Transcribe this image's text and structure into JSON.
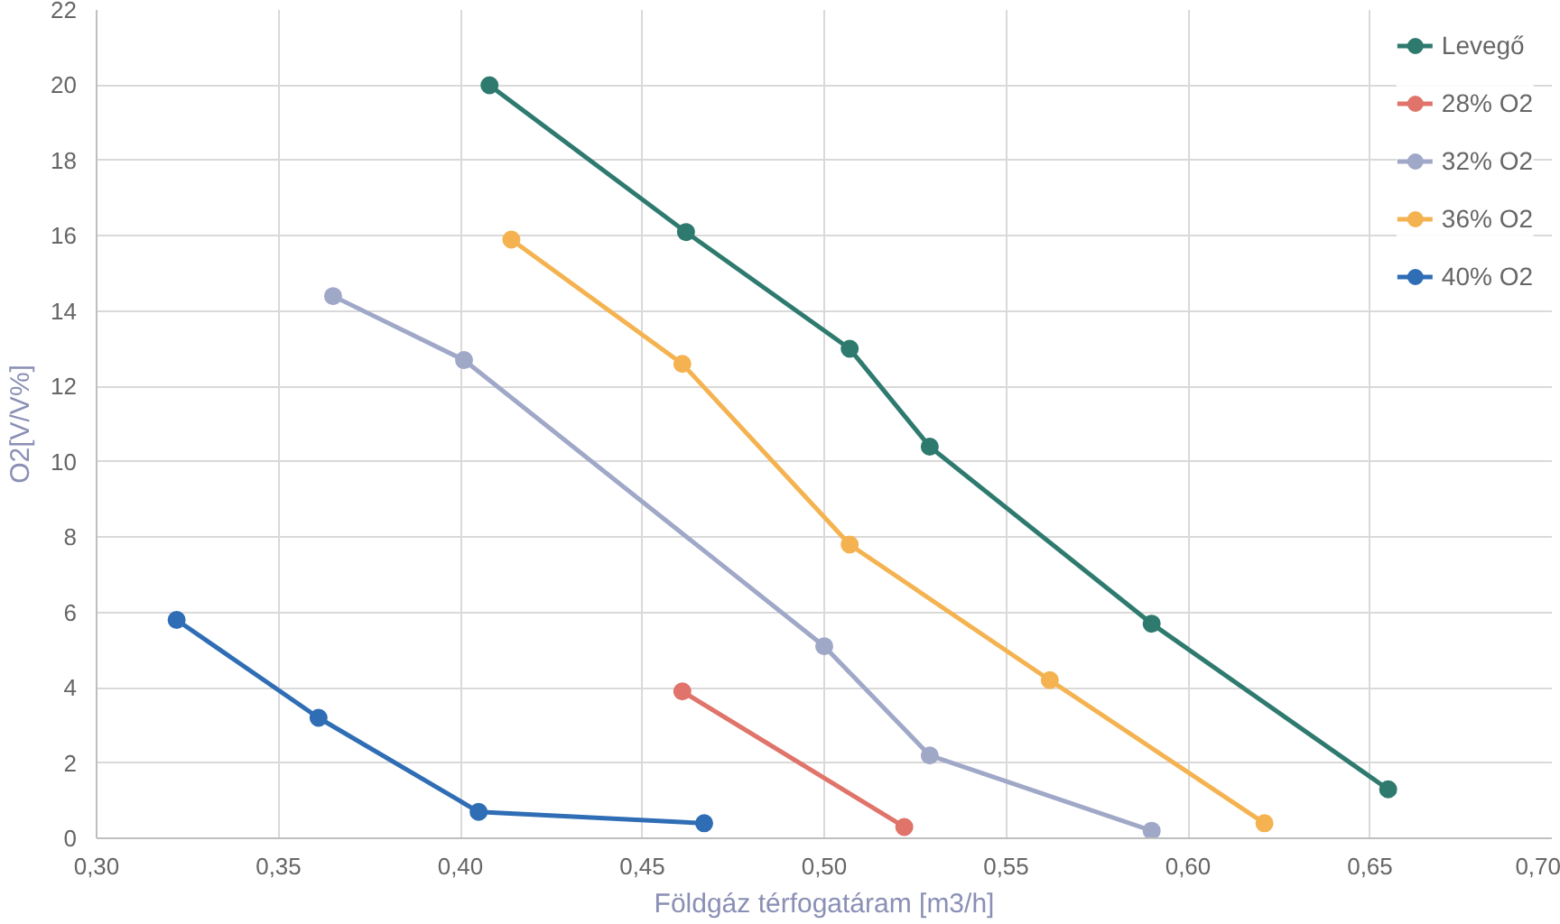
{
  "chart_data": {
    "type": "line",
    "xlabel": "Földgáz térfogatáram [m3/h]",
    "ylabel": "O2[V/V%]",
    "xlim": [
      0.3,
      0.7
    ],
    "xticks": [
      {
        "value": 0.3,
        "label": "0,30"
      },
      {
        "value": 0.35,
        "label": "0,35"
      },
      {
        "value": 0.4,
        "label": "0,40"
      },
      {
        "value": 0.45,
        "label": "0,45"
      },
      {
        "value": 0.5,
        "label": "0,50"
      },
      {
        "value": 0.55,
        "label": "0,55"
      },
      {
        "value": 0.6,
        "label": "0,60"
      },
      {
        "value": 0.65,
        "label": "0,65"
      },
      {
        "value": 0.7,
        "label": "0,70"
      }
    ],
    "ylim": [
      0,
      22
    ],
    "yticks": [
      0,
      2,
      4,
      6,
      8,
      10,
      12,
      14,
      16,
      18,
      20,
      22
    ],
    "grid": true,
    "legend": "top right",
    "marker": "circle",
    "line_style": "solid",
    "series": [
      {
        "name": "Levegő",
        "color": "#2e7a6e",
        "x": [
          0.408,
          0.462,
          0.507,
          0.529,
          0.59,
          0.655
        ],
        "values": [
          20.0,
          16.1,
          13.0,
          10.4,
          5.7,
          1.3
        ]
      },
      {
        "name": "28% O2",
        "color": "#e0736a",
        "x": [
          0.461,
          0.522
        ],
        "values": [
          3.9,
          0.3
        ]
      },
      {
        "name": "32% O2",
        "color": "#a0a8c8",
        "x": [
          0.365,
          0.401,
          0.5,
          0.529,
          0.59
        ],
        "values": [
          14.4,
          12.7,
          5.1,
          2.2,
          0.2
        ]
      },
      {
        "name": "36% O2",
        "color": "#f4b350",
        "x": [
          0.414,
          0.461,
          0.507,
          0.562,
          0.621
        ],
        "values": [
          15.9,
          12.6,
          7.8,
          4.2,
          0.4
        ]
      },
      {
        "name": "40% O2",
        "color": "#2f6db5",
        "x": [
          0.322,
          0.361,
          0.405,
          0.467
        ],
        "values": [
          5.8,
          3.2,
          0.7,
          0.4
        ]
      }
    ]
  }
}
